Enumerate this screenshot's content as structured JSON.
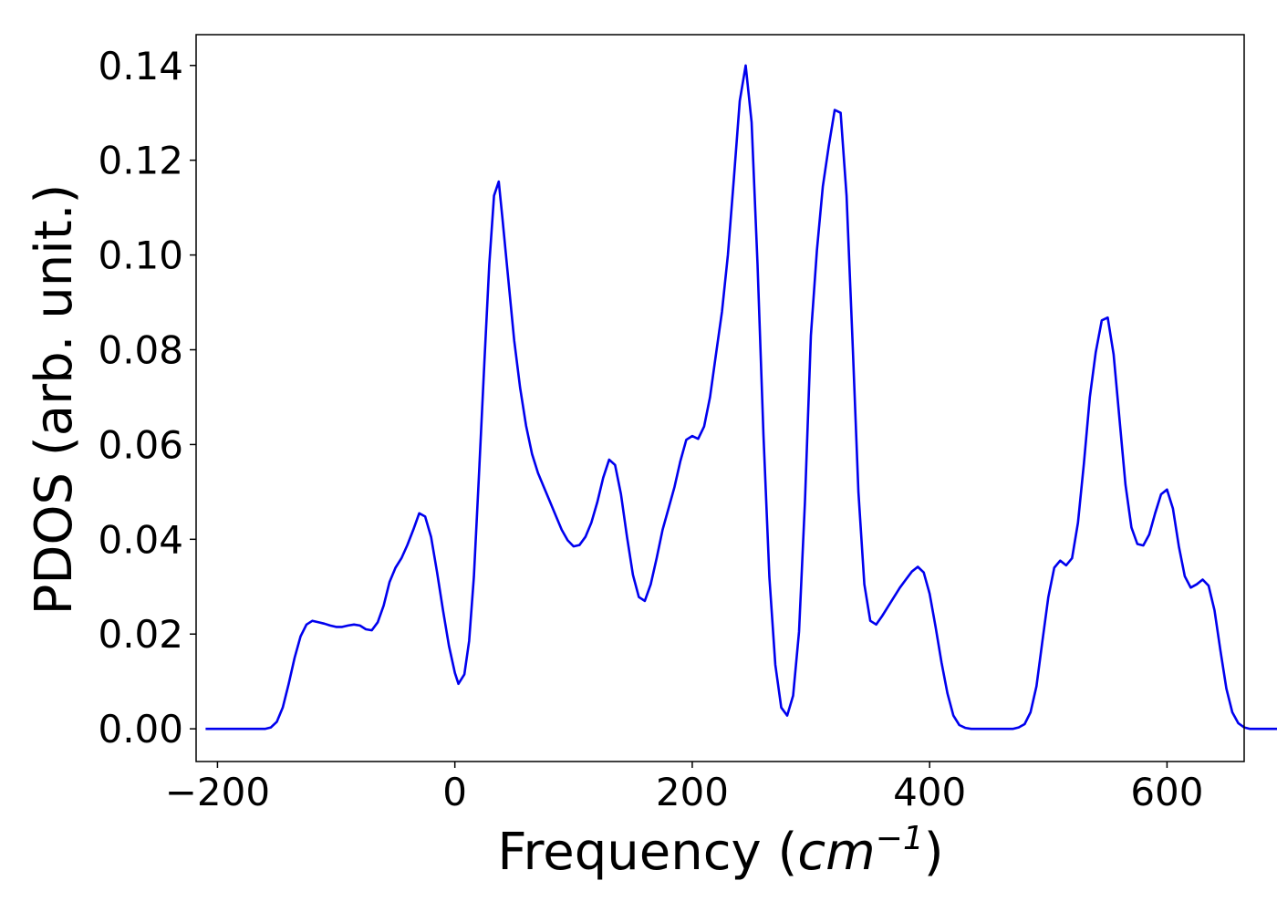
{
  "chart_data": {
    "type": "line",
    "title": "",
    "xlabel": {
      "prefix": "Frequency (",
      "unit_base": "cm",
      "unit_exp": "−1",
      "suffix": ")"
    },
    "ylabel": "PDOS (arb. unit.)",
    "xlim": [
      -218,
      665
    ],
    "ylim": [
      -0.0069,
      0.1465
    ],
    "x_ticks": [
      -200,
      0,
      200,
      400,
      600
    ],
    "x_tick_labels": [
      "−200",
      "0",
      "200",
      "400",
      "600"
    ],
    "y_ticks": [
      0.0,
      0.02,
      0.04,
      0.06,
      0.08,
      0.1,
      0.12,
      0.14
    ],
    "y_tick_labels": [
      "0.00",
      "0.02",
      "0.04",
      "0.06",
      "0.08",
      "0.10",
      "0.12",
      "0.14"
    ],
    "grid": false,
    "legend": "none",
    "series": [
      {
        "color": "#0000ee",
        "points": [
          [
            -210,
            0.0
          ],
          [
            -160,
            0.0
          ],
          [
            -155,
            0.0003
          ],
          [
            -150,
            0.0015
          ],
          [
            -145,
            0.0045
          ],
          [
            -140,
            0.0095
          ],
          [
            -135,
            0.015
          ],
          [
            -130,
            0.0195
          ],
          [
            -125,
            0.022
          ],
          [
            -120,
            0.0228
          ],
          [
            -115,
            0.0225
          ],
          [
            -110,
            0.0222
          ],
          [
            -105,
            0.0218
          ],
          [
            -100,
            0.0215
          ],
          [
            -95,
            0.0215
          ],
          [
            -90,
            0.0218
          ],
          [
            -85,
            0.022
          ],
          [
            -80,
            0.0218
          ],
          [
            -75,
            0.021
          ],
          [
            -70,
            0.0208
          ],
          [
            -65,
            0.0225
          ],
          [
            -60,
            0.026
          ],
          [
            -55,
            0.031
          ],
          [
            -50,
            0.034
          ],
          [
            -45,
            0.036
          ],
          [
            -40,
            0.0388
          ],
          [
            -35,
            0.042
          ],
          [
            -30,
            0.0455
          ],
          [
            -25,
            0.0448
          ],
          [
            -20,
            0.0405
          ],
          [
            -15,
            0.033
          ],
          [
            -10,
            0.025
          ],
          [
            -5,
            0.0175
          ],
          [
            0,
            0.0118
          ],
          [
            3,
            0.0095
          ],
          [
            8,
            0.0115
          ],
          [
            12,
            0.0185
          ],
          [
            16,
            0.032
          ],
          [
            20,
            0.052
          ],
          [
            25,
            0.078
          ],
          [
            29,
            0.098
          ],
          [
            33,
            0.1125
          ],
          [
            37,
            0.1155
          ],
          [
            40,
            0.108
          ],
          [
            45,
            0.095
          ],
          [
            50,
            0.082
          ],
          [
            55,
            0.072
          ],
          [
            60,
            0.064
          ],
          [
            65,
            0.058
          ],
          [
            70,
            0.054
          ],
          [
            75,
            0.051
          ],
          [
            80,
            0.048
          ],
          [
            85,
            0.045
          ],
          [
            90,
            0.042
          ],
          [
            95,
            0.0398
          ],
          [
            100,
            0.0385
          ],
          [
            105,
            0.0388
          ],
          [
            110,
            0.0405
          ],
          [
            115,
            0.0435
          ],
          [
            120,
            0.0478
          ],
          [
            125,
            0.053
          ],
          [
            130,
            0.0568
          ],
          [
            135,
            0.0557
          ],
          [
            140,
            0.0495
          ],
          [
            145,
            0.0405
          ],
          [
            150,
            0.0325
          ],
          [
            155,
            0.0278
          ],
          [
            160,
            0.027
          ],
          [
            165,
            0.0305
          ],
          [
            170,
            0.036
          ],
          [
            175,
            0.042
          ],
          [
            180,
            0.0465
          ],
          [
            185,
            0.051
          ],
          [
            190,
            0.0565
          ],
          [
            195,
            0.061
          ],
          [
            200,
            0.0618
          ],
          [
            205,
            0.0612
          ],
          [
            210,
            0.0638
          ],
          [
            215,
            0.07
          ],
          [
            220,
            0.079
          ],
          [
            225,
            0.088
          ],
          [
            230,
            0.1
          ],
          [
            235,
            0.116
          ],
          [
            240,
            0.1325
          ],
          [
            245,
            0.14
          ],
          [
            250,
            0.128
          ],
          [
            255,
            0.098
          ],
          [
            260,
            0.062
          ],
          [
            265,
            0.032
          ],
          [
            270,
            0.0135
          ],
          [
            275,
            0.0045
          ],
          [
            280,
            0.0028
          ],
          [
            285,
            0.007
          ],
          [
            290,
            0.0205
          ],
          [
            295,
            0.048
          ],
          [
            300,
            0.083
          ],
          [
            305,
            0.101
          ],
          [
            310,
            0.1145
          ],
          [
            315,
            0.123
          ],
          [
            320,
            0.1306
          ],
          [
            325,
            0.13
          ],
          [
            330,
            0.1125
          ],
          [
            335,
            0.082
          ],
          [
            340,
            0.05
          ],
          [
            345,
            0.0305
          ],
          [
            350,
            0.0228
          ],
          [
            355,
            0.022
          ],
          [
            360,
            0.0238
          ],
          [
            365,
            0.0258
          ],
          [
            370,
            0.0278
          ],
          [
            375,
            0.0298
          ],
          [
            380,
            0.0315
          ],
          [
            385,
            0.0332
          ],
          [
            390,
            0.0342
          ],
          [
            395,
            0.033
          ],
          [
            400,
            0.0285
          ],
          [
            405,
            0.0215
          ],
          [
            410,
            0.014
          ],
          [
            415,
            0.0075
          ],
          [
            420,
            0.0028
          ],
          [
            425,
            0.0008
          ],
          [
            430,
            0.0002
          ],
          [
            435,
            0.0
          ],
          [
            470,
            0.0
          ],
          [
            475,
            0.0003
          ],
          [
            480,
            0.001
          ],
          [
            485,
            0.0035
          ],
          [
            490,
            0.009
          ],
          [
            495,
            0.0185
          ],
          [
            500,
            0.0278
          ],
          [
            505,
            0.034
          ],
          [
            510,
            0.0355
          ],
          [
            515,
            0.0345
          ],
          [
            520,
            0.036
          ],
          [
            525,
            0.0435
          ],
          [
            530,
            0.056
          ],
          [
            535,
            0.07
          ],
          [
            540,
            0.0795
          ],
          [
            545,
            0.0862
          ],
          [
            550,
            0.0868
          ],
          [
            555,
            0.079
          ],
          [
            560,
            0.0652
          ],
          [
            565,
            0.0515
          ],
          [
            570,
            0.0425
          ],
          [
            575,
            0.039
          ],
          [
            580,
            0.0387
          ],
          [
            585,
            0.041
          ],
          [
            590,
            0.0455
          ],
          [
            595,
            0.0495
          ],
          [
            600,
            0.0505
          ],
          [
            605,
            0.0465
          ],
          [
            610,
            0.0385
          ],
          [
            615,
            0.0322
          ],
          [
            620,
            0.0298
          ],
          [
            625,
            0.0305
          ],
          [
            630,
            0.0315
          ],
          [
            635,
            0.0302
          ],
          [
            640,
            0.025
          ],
          [
            645,
            0.0165
          ],
          [
            650,
            0.0085
          ],
          [
            655,
            0.0035
          ],
          [
            660,
            0.0012
          ],
          [
            665,
            0.0003
          ],
          [
            670,
            0.0
          ],
          [
            710,
            0.0
          ]
        ]
      }
    ]
  }
}
